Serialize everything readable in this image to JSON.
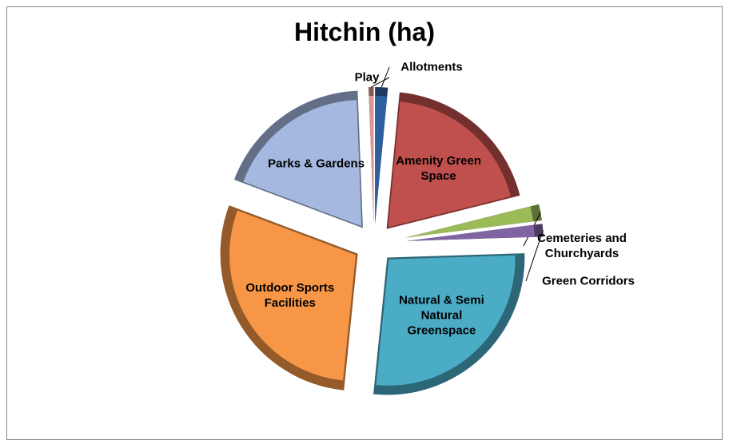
{
  "chart_data": {
    "type": "pie",
    "title": "Hitchin (ha)",
    "categories": [
      "Allotments",
      "Amenity Green Space",
      "Cemeteries and Churchyards",
      "Green Corridors",
      "Natural & Semi Natural Greenspace",
      "Outdoor Sports Facilities",
      "Parks & Gardens",
      "Play"
    ],
    "values": [
      1.5,
      19.5,
      1.9,
      1.5,
      27,
      29,
      18.6,
      0.6
    ],
    "colors": [
      "#2e5f9e",
      "#c0504d",
      "#9bbb59",
      "#8064a2",
      "#4bacc6",
      "#f79646",
      "#a5b9e0",
      "#d99694"
    ]
  }
}
